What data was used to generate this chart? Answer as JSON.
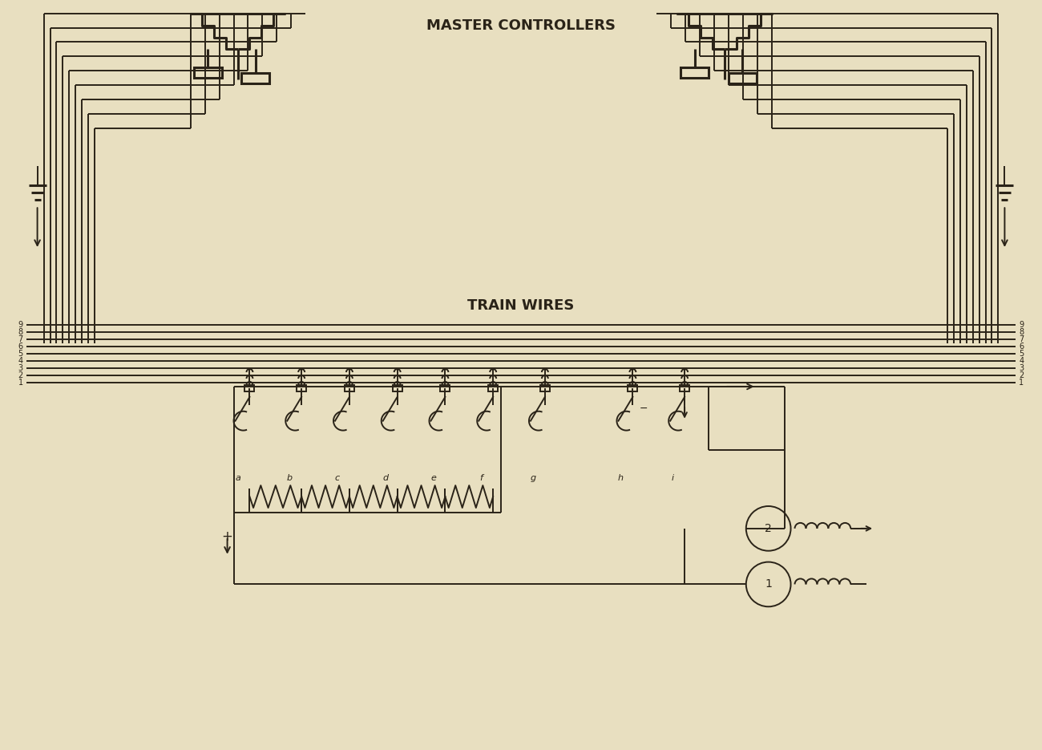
{
  "bg_color": "#e8dfc0",
  "line_color": "#2a2318",
  "title": "MASTER CONTROLLERS",
  "subtitle": "TRAIN WIRES",
  "fig_width": 13.0,
  "fig_height": 9.35,
  "num_wires": 9,
  "switch_labels": [
    "a",
    "b",
    "c",
    "d",
    "e",
    "f",
    "g",
    "h",
    "i"
  ],
  "lw": 1.4,
  "lw_thick": 2.2
}
